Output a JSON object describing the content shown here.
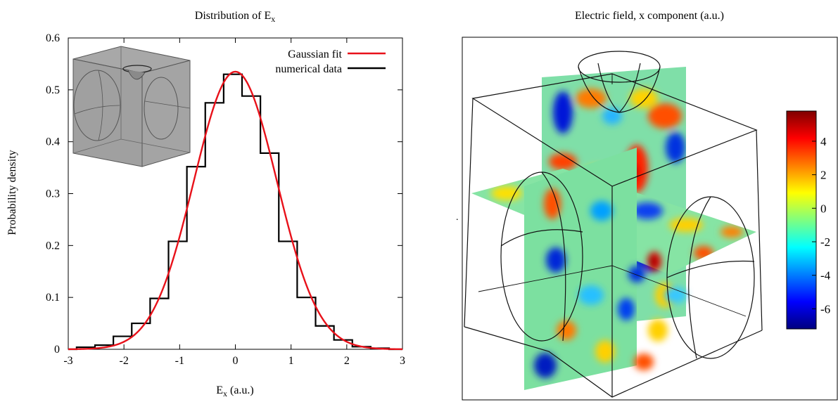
{
  "left_panel": {
    "title_main": "Distribution of E",
    "title_sub": "x",
    "xlabel_main": "E",
    "xlabel_sub": "x",
    "xlabel_unit": " (a.u.)",
    "ylabel": "Probability density"
  },
  "right_panel": {
    "title": "Electric field, x component (a.u.)",
    "colorbar": {
      "ticks": [
        "4",
        "2",
        "0",
        "-2",
        "-4",
        "-6"
      ],
      "tick_values": [
        4,
        2,
        0,
        -2,
        -4,
        -6
      ],
      "range": [
        -7.2,
        5.8
      ],
      "colors": [
        "#00007f",
        "#0000ff",
        "#007fff",
        "#00ffff",
        "#7fff7f",
        "#ffff00",
        "#ff7f00",
        "#ff0000",
        "#7f0000"
      ]
    }
  },
  "chart_data": [
    {
      "type": "bar",
      "subtype": "step-histogram-with-fit",
      "xlim": [
        -3,
        3
      ],
      "ylim": [
        0,
        0.6
      ],
      "xticks": [
        "-3",
        "-2",
        "-1",
        "0",
        "1",
        "2",
        "3"
      ],
      "xtick_values": [
        -3,
        -2,
        -1,
        0,
        1,
        2,
        3
      ],
      "yticks": [
        "0",
        "0.1",
        "0.2",
        "0.3",
        "0.4",
        "0.5",
        "0.6"
      ],
      "ytick_values": [
        0,
        0.1,
        0.2,
        0.3,
        0.4,
        0.5,
        0.6
      ],
      "legend": {
        "placement": "top-right"
      },
      "series": [
        {
          "name": "Gaussian fit",
          "kind": "line",
          "color": "#e8111a",
          "mean": 0.0,
          "sigma": 0.745,
          "peak": 0.535
        },
        {
          "name": "numerical data",
          "kind": "step",
          "color": "#000000",
          "bin_edges": [
            -2.85,
            -2.52,
            -2.19,
            -1.86,
            -1.53,
            -1.2,
            -0.87,
            -0.54,
            -0.21,
            0.12,
            0.45,
            0.78,
            1.11,
            1.44,
            1.77,
            2.1,
            2.43,
            2.76
          ],
          "values": [
            0.004,
            0.008,
            0.025,
            0.05,
            0.098,
            0.208,
            0.352,
            0.475,
            0.53,
            0.488,
            0.378,
            0.208,
            0.1,
            0.045,
            0.018,
            0.005,
            0.002
          ]
        }
      ]
    },
    {
      "type": "heatmap",
      "colorbar_range": [
        -7.2,
        5.8
      ],
      "colorbar_ticks": [
        4,
        2,
        0,
        -2,
        -4,
        -6
      ]
    }
  ]
}
